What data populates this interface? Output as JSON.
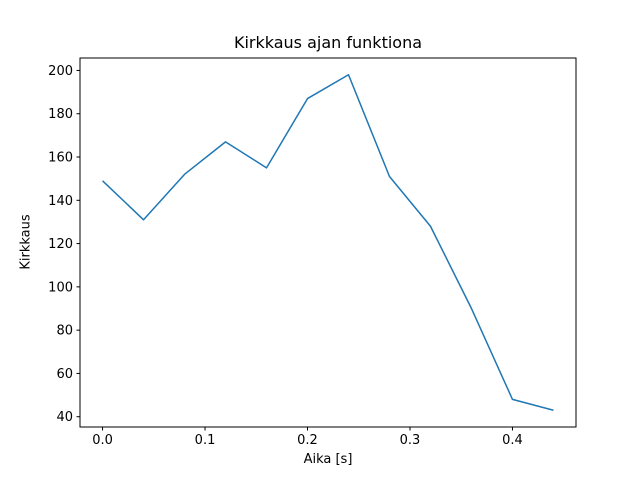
{
  "figure": {
    "background": "#ffffff"
  },
  "chart_data": {
    "type": "line",
    "title": "Kirkkaus ajan funktiona",
    "xlabel": "Aika [s]",
    "ylabel": "Kirkkaus",
    "x": [
      0.0,
      0.04,
      0.08,
      0.12,
      0.16,
      0.2,
      0.24,
      0.28,
      0.32,
      0.36,
      0.4,
      0.44
    ],
    "y": [
      149,
      131,
      152,
      167,
      155,
      187,
      198,
      151,
      128,
      90,
      48,
      43
    ],
    "line_color": "#1f77b4",
    "axis_color": "#000000",
    "xlim": [
      -0.022,
      0.462
    ],
    "ylim": [
      35.25,
      205.75
    ],
    "xticks": [
      0.0,
      0.1,
      0.2,
      0.3,
      0.4
    ],
    "xtick_labels": [
      "0.0",
      "0.1",
      "0.2",
      "0.3",
      "0.4"
    ],
    "yticks": [
      40,
      60,
      80,
      100,
      120,
      140,
      160,
      180,
      200
    ],
    "ytick_labels": [
      "40",
      "60",
      "80",
      "100",
      "120",
      "140",
      "160",
      "180",
      "200"
    ],
    "grid": false,
    "legend": null
  }
}
